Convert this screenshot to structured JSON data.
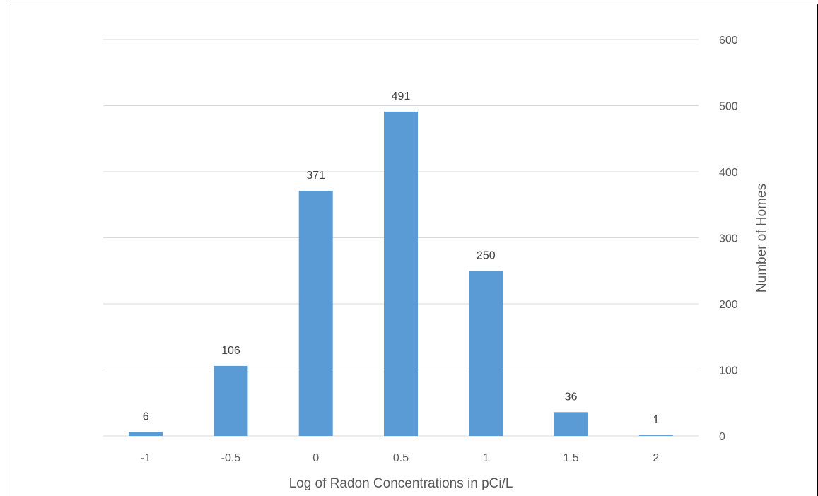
{
  "chart_data": {
    "type": "bar",
    "categories": [
      "-1",
      "-0.5",
      "0",
      "0.5",
      "1",
      "1.5",
      "2"
    ],
    "values": [
      6,
      106,
      371,
      491,
      250,
      36,
      1
    ],
    "data_labels": [
      "6",
      "106",
      "371",
      "491",
      "250",
      "36",
      "1"
    ],
    "title": "",
    "xlabel": "Log of Radon Concentrations in pCi/L",
    "ylabel": "Number of Homes",
    "ylim": [
      0,
      600
    ],
    "yticks": [
      "0",
      "100",
      "200",
      "300",
      "400",
      "500",
      "600"
    ],
    "y_axis_side": "right",
    "grid": true,
    "bar_color": "#5b9bd5",
    "grid_color": "#d9d9d9"
  }
}
